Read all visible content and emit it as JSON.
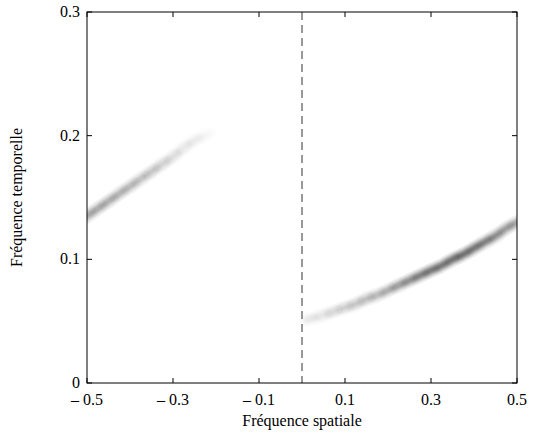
{
  "chart_data": {
    "type": "spectrum",
    "x_label": "Fréquence spatiale",
    "y_label": "Fréquence temporelle",
    "xlim": [
      -0.5,
      0.5
    ],
    "ylim": [
      0,
      0.3
    ],
    "xticks": [
      {
        "value": -0.5,
        "label": "– 0.5"
      },
      {
        "value": -0.3,
        "label": "– 0.3"
      },
      {
        "value": -0.1,
        "label": "– 0.1"
      },
      0.1,
      0.3,
      0.5
    ],
    "yticks": [
      0,
      0.1,
      0.2,
      0.3
    ],
    "reference_lines": [
      0
    ],
    "series": [
      {
        "color": "#262626",
        "x": [
          -0.5,
          -0.475,
          -0.45,
          -0.425,
          -0.4,
          -0.375,
          -0.35,
          -0.325,
          -0.3,
          -0.275,
          -0.25,
          -0.225
        ],
        "values": [
          0.135,
          0.141,
          0.147,
          0.153,
          0.159,
          0.165,
          0.171,
          0.177,
          0.183,
          0.19,
          0.196,
          0.2
        ],
        "intensity": [
          0.6,
          0.6,
          0.58,
          0.55,
          0.5,
          0.45,
          0.4,
          0.32,
          0.25,
          0.18,
          0.12,
          0.06
        ]
      },
      {
        "color": "#262626",
        "x": [
          0.02,
          0.05,
          0.075,
          0.1,
          0.125,
          0.15,
          0.175,
          0.2,
          0.225,
          0.25,
          0.275,
          0.3,
          0.325,
          0.35,
          0.375,
          0.4,
          0.425,
          0.45,
          0.475,
          0.5
        ],
        "values": [
          0.052,
          0.055,
          0.058,
          0.061,
          0.064,
          0.068,
          0.071,
          0.075,
          0.079,
          0.083,
          0.087,
          0.091,
          0.095,
          0.1,
          0.104,
          0.109,
          0.114,
          0.119,
          0.125,
          0.13
        ],
        "intensity": [
          0.15,
          0.2,
          0.25,
          0.3,
          0.35,
          0.4,
          0.45,
          0.55,
          0.65,
          0.75,
          0.85,
          0.92,
          0.97,
          1,
          1,
          0.95,
          0.9,
          0.8,
          0.7,
          0.6
        ]
      }
    ]
  }
}
